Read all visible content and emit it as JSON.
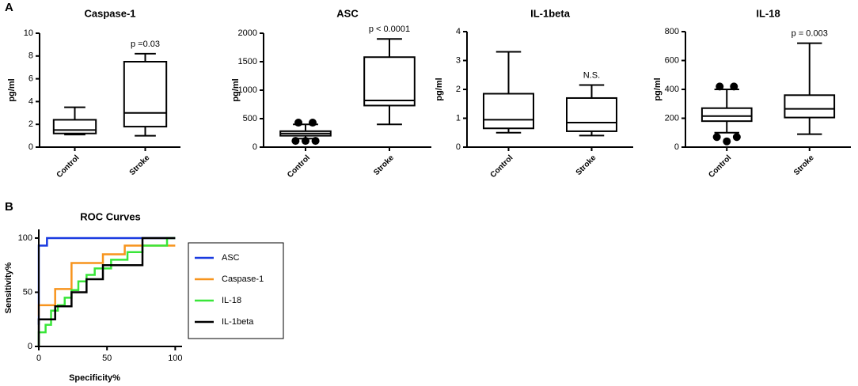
{
  "panels": [
    "A",
    "B"
  ],
  "chart_data": [
    {
      "type": "box",
      "title": "Caspase-1",
      "ylabel": "pg/ml",
      "annotation": "p =0.03",
      "categories": [
        "Control",
        "Stroke"
      ],
      "ylim": [
        0,
        10
      ],
      "yticks": [
        0,
        2,
        4,
        6,
        8,
        10
      ],
      "boxes": [
        {
          "whisker_low": 1.1,
          "q1": 1.2,
          "median": 1.5,
          "q3": 2.4,
          "whisker_high": 3.5,
          "outliers": []
        },
        {
          "whisker_low": 1.0,
          "q1": 1.8,
          "median": 3.0,
          "q3": 7.5,
          "whisker_high": 8.2,
          "outliers": []
        }
      ]
    },
    {
      "type": "box",
      "title": "ASC",
      "ylabel": "pg/ml",
      "annotation": "p < 0.0001",
      "categories": [
        "Control",
        "Stroke"
      ],
      "ylim": [
        0,
        2000
      ],
      "yticks": [
        0,
        500,
        1000,
        1500,
        2000
      ],
      "boxes": [
        {
          "whisker_low": 150,
          "q1": 200,
          "median": 240,
          "q3": 280,
          "whisker_high": 400,
          "outliers": [
            430,
            430,
            110,
            110,
            110
          ]
        },
        {
          "whisker_low": 400,
          "q1": 730,
          "median": 820,
          "q3": 1580,
          "whisker_high": 1900,
          "outliers": []
        }
      ]
    },
    {
      "type": "box",
      "title": "IL-1beta",
      "ylabel": "pg/ml",
      "annotation": "N.S.",
      "categories": [
        "Control",
        "Stroke"
      ],
      "ylim": [
        0,
        4
      ],
      "yticks": [
        0,
        1,
        2,
        3,
        4
      ],
      "boxes": [
        {
          "whisker_low": 0.5,
          "q1": 0.65,
          "median": 0.95,
          "q3": 1.85,
          "whisker_high": 3.3,
          "outliers": []
        },
        {
          "whisker_low": 0.4,
          "q1": 0.55,
          "median": 0.85,
          "q3": 1.7,
          "whisker_high": 2.15,
          "outliers": []
        }
      ]
    },
    {
      "type": "box",
      "title": "IL-18",
      "ylabel": "pg/ml",
      "annotation": "p = 0.003",
      "categories": [
        "Control",
        "Stroke"
      ],
      "ylim": [
        0,
        800
      ],
      "yticks": [
        0,
        200,
        400,
        600,
        800
      ],
      "boxes": [
        {
          "whisker_low": 100,
          "q1": 180,
          "median": 215,
          "q3": 270,
          "whisker_high": 400,
          "outliers": [
            420,
            420,
            70,
            40,
            70
          ]
        },
        {
          "whisker_low": 90,
          "q1": 205,
          "median": 265,
          "q3": 360,
          "whisker_high": 720,
          "outliers": []
        }
      ]
    },
    {
      "type": "line",
      "title": "ROC Curves",
      "xlabel": "Specificity%",
      "ylabel": "Sensitivity%",
      "xlim": [
        0,
        105
      ],
      "ylim": [
        0,
        108
      ],
      "xticks": [
        0,
        50,
        100
      ],
      "yticks": [
        0,
        50,
        100
      ],
      "legend": "right",
      "series": [
        {
          "name": "ASC",
          "color": "#1a3be0",
          "x": [
            0,
            0,
            6,
            6,
            100
          ],
          "values": [
            20,
            93,
            93,
            100,
            100
          ]
        },
        {
          "name": "Caspase-1",
          "color": "#f7941d",
          "x": [
            0,
            0,
            12,
            12,
            24,
            24,
            47,
            47,
            63,
            63,
            100
          ],
          "values": [
            28,
            38,
            38,
            53,
            53,
            77,
            77,
            85,
            85,
            93,
            93
          ]
        },
        {
          "name": "IL-18",
          "color": "#39e639",
          "x": [
            0,
            0,
            5,
            5,
            9,
            9,
            14,
            14,
            19,
            19,
            24,
            24,
            29,
            29,
            35,
            35,
            41,
            41,
            53,
            53,
            65,
            65,
            76,
            76,
            94,
            94,
            100
          ],
          "values": [
            0,
            13,
            13,
            20,
            20,
            33,
            33,
            38,
            38,
            45,
            45,
            52,
            52,
            60,
            60,
            66,
            66,
            72,
            72,
            80,
            80,
            87,
            87,
            93,
            93,
            100,
            100
          ]
        },
        {
          "name": "IL-1beta",
          "color": "#000000",
          "x": [
            0,
            0,
            12,
            12,
            24,
            24,
            35,
            35,
            47,
            47,
            59,
            59,
            76,
            76,
            100
          ],
          "values": [
            0,
            25,
            25,
            37,
            37,
            50,
            50,
            62,
            62,
            75,
            75,
            75,
            75,
            100,
            100
          ]
        }
      ]
    }
  ]
}
